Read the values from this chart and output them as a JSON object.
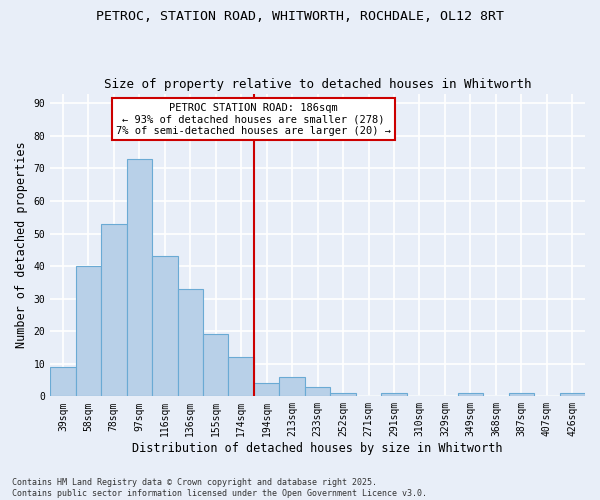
{
  "title1": "PETROC, STATION ROAD, WHITWORTH, ROCHDALE, OL12 8RT",
  "title2": "Size of property relative to detached houses in Whitworth",
  "xlabel": "Distribution of detached houses by size in Whitworth",
  "ylabel": "Number of detached properties",
  "categories": [
    "39sqm",
    "58sqm",
    "78sqm",
    "97sqm",
    "116sqm",
    "136sqm",
    "155sqm",
    "174sqm",
    "194sqm",
    "213sqm",
    "233sqm",
    "252sqm",
    "271sqm",
    "291sqm",
    "310sqm",
    "329sqm",
    "349sqm",
    "368sqm",
    "387sqm",
    "407sqm",
    "426sqm"
  ],
  "values": [
    9,
    40,
    53,
    73,
    43,
    33,
    19,
    12,
    4,
    6,
    3,
    1,
    0,
    1,
    0,
    0,
    1,
    0,
    1,
    0,
    1
  ],
  "bar_color": "#b8d0e8",
  "bar_edge_color": "#6aaad4",
  "vline_x": 7.5,
  "vline_color": "#cc0000",
  "annotation_title": "PETROC STATION ROAD: 186sqm",
  "annotation_line1": "← 93% of detached houses are smaller (278)",
  "annotation_line2": "7% of semi-detached houses are larger (20) →",
  "annotation_box_color": "#ffffff",
  "annotation_box_edge": "#cc0000",
  "ylim": [
    0,
    93
  ],
  "yticks": [
    0,
    10,
    20,
    30,
    40,
    50,
    60,
    70,
    80,
    90
  ],
  "footnote": "Contains HM Land Registry data © Crown copyright and database right 2025.\nContains public sector information licensed under the Open Government Licence v3.0.",
  "bg_color": "#e8eef8",
  "plot_bg_color": "#e8eef8",
  "grid_color": "#ffffff",
  "title_fontsize": 9.5,
  "subtitle_fontsize": 9,
  "axis_fontsize": 8.5,
  "tick_fontsize": 7,
  "footnote_fontsize": 6,
  "ann_fontsize": 7.5
}
